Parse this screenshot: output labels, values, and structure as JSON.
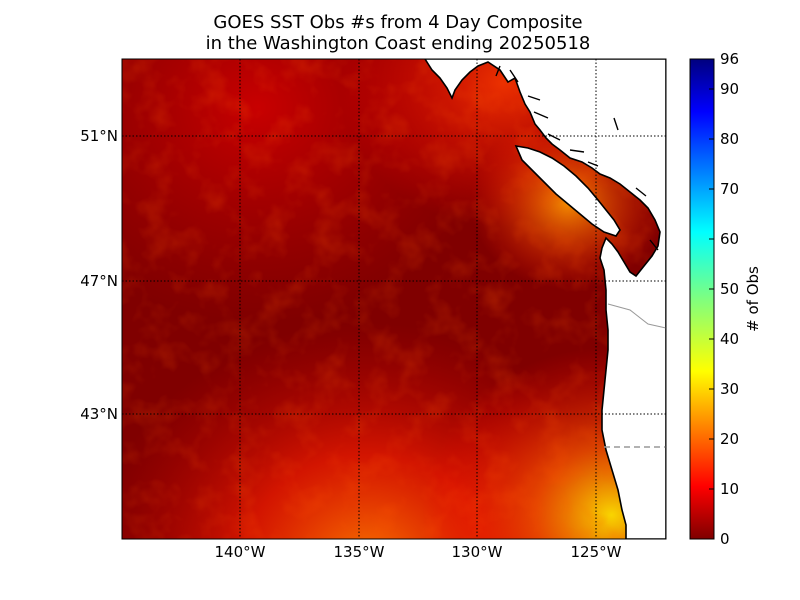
{
  "title": {
    "line1": "GOES SST Obs #s from 4 Day Composite",
    "line2": "in the Washington Coast ending 20250518"
  },
  "map": {
    "lon_labels": [
      "140°W",
      "135°W",
      "130°W",
      "125°W"
    ],
    "lat_labels": [
      "51°N",
      "47°N",
      "43°N"
    ],
    "colors": {
      "background": "#800000",
      "land": "#ffffff",
      "coast": "#000000",
      "grid": "#000000",
      "border": "#999999"
    }
  },
  "colorbar": {
    "label": "# of Obs",
    "ticks": [
      "0",
      "10",
      "20",
      "30",
      "40",
      "50",
      "60",
      "70",
      "80",
      "90",
      "96"
    ],
    "colormap": "jet",
    "range": [
      0,
      96
    ]
  }
}
